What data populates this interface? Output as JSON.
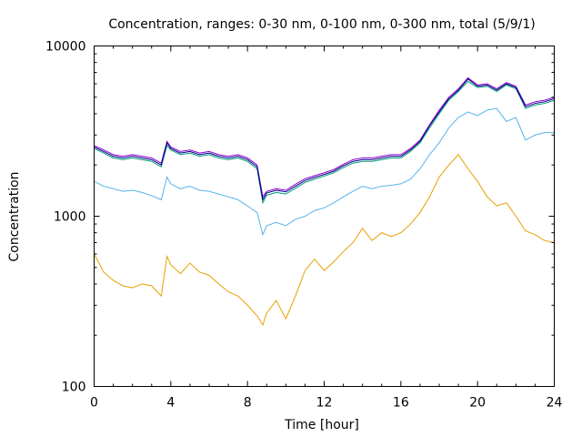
{
  "chart_data": {
    "type": "line",
    "title": "Concentration, ranges: 0-30 nm, 0-100 nm, 0-300 nm, total (5/9/1)",
    "xlabel": "Time [hour]",
    "ylabel": "Concentration",
    "xlim": [
      0,
      24
    ],
    "ylim": [
      100,
      10000
    ],
    "yscale": "log",
    "grid": false,
    "x_ticks": [
      "0",
      "4",
      "8",
      "12",
      "16",
      "20",
      "24"
    ],
    "y_ticks": [
      "100",
      "1000",
      "10000"
    ],
    "x": [
      0,
      0.5,
      1,
      1.5,
      2,
      2.5,
      3,
      3.5,
      3.8,
      4,
      4.5,
      5,
      5.5,
      6,
      6.5,
      7,
      7.5,
      8,
      8.5,
      8.8,
      9,
      9.5,
      10,
      10.5,
      11,
      11.5,
      12,
      12.5,
      13,
      13.5,
      14,
      14.5,
      15,
      15.5,
      16,
      16.5,
      17,
      17.5,
      18,
      18.5,
      19,
      19.5,
      20,
      20.5,
      21,
      21.5,
      22,
      22.5,
      23,
      23.5,
      24
    ],
    "series": [
      {
        "color": "#e69f00",
        "values": [
          600,
          470,
          420,
          390,
          380,
          400,
          390,
          340,
          580,
          520,
          460,
          530,
          470,
          450,
          400,
          360,
          340,
          300,
          260,
          230,
          270,
          320,
          250,
          340,
          480,
          560,
          480,
          540,
          620,
          700,
          850,
          720,
          800,
          760,
          800,
          900,
          1050,
          1300,
          1700,
          2000,
          2300,
          1900,
          1600,
          1300,
          1150,
          1200,
          1000,
          820,
          780,
          720,
          700
        ]
      },
      {
        "color": "#56b4e9",
        "values": [
          1600,
          1500,
          1450,
          1400,
          1420,
          1380,
          1320,
          1250,
          1700,
          1550,
          1450,
          1500,
          1420,
          1400,
          1350,
          1300,
          1250,
          1150,
          1050,
          780,
          880,
          920,
          880,
          960,
          1000,
          1080,
          1120,
          1200,
          1300,
          1400,
          1500,
          1450,
          1500,
          1520,
          1550,
          1650,
          1900,
          2300,
          2700,
          3300,
          3800,
          4100,
          3900,
          4200,
          4300,
          3600,
          3800,
          2800,
          3000,
          3100,
          3100
        ]
      },
      {
        "color": "#009e73",
        "values": [
          2500,
          2350,
          2200,
          2150,
          2200,
          2150,
          2100,
          1950,
          2600,
          2450,
          2300,
          2350,
          2250,
          2300,
          2200,
          2150,
          2200,
          2100,
          1900,
          1200,
          1330,
          1380,
          1350,
          1460,
          1580,
          1650,
          1720,
          1800,
          1930,
          2050,
          2100,
          2100,
          2150,
          2200,
          2200,
          2400,
          2700,
          3300,
          4000,
          4800,
          5400,
          6200,
          5700,
          5800,
          5400,
          5900,
          5600,
          4300,
          4500,
          4600,
          4800
        ]
      },
      {
        "color": "#9400d3",
        "values": [
          2600,
          2450,
          2300,
          2250,
          2300,
          2250,
          2200,
          2050,
          2750,
          2550,
          2400,
          2450,
          2350,
          2400,
          2300,
          2250,
          2300,
          2200,
          2000,
          1300,
          1400,
          1450,
          1420,
          1540,
          1660,
          1730,
          1800,
          1880,
          2020,
          2150,
          2200,
          2200,
          2250,
          2300,
          2300,
          2500,
          2800,
          3450,
          4200,
          5000,
          5600,
          6500,
          5900,
          6000,
          5600,
          6100,
          5800,
          4500,
          4700,
          4800,
          5000
        ]
      },
      {
        "color": "#00008b",
        "values": [
          2550,
          2400,
          2250,
          2200,
          2250,
          2200,
          2150,
          2000,
          2700,
          2500,
          2350,
          2400,
          2300,
          2350,
          2250,
          2200,
          2250,
          2150,
          1950,
          1250,
          1370,
          1420,
          1390,
          1500,
          1620,
          1690,
          1760,
          1840,
          1980,
          2100,
          2150,
          2150,
          2200,
          2250,
          2250,
          2450,
          2750,
          3400,
          4100,
          4900,
          5500,
          6400,
          5800,
          5900,
          5500,
          6000,
          5700,
          4400,
          4600,
          4700,
          4900
        ]
      }
    ]
  }
}
